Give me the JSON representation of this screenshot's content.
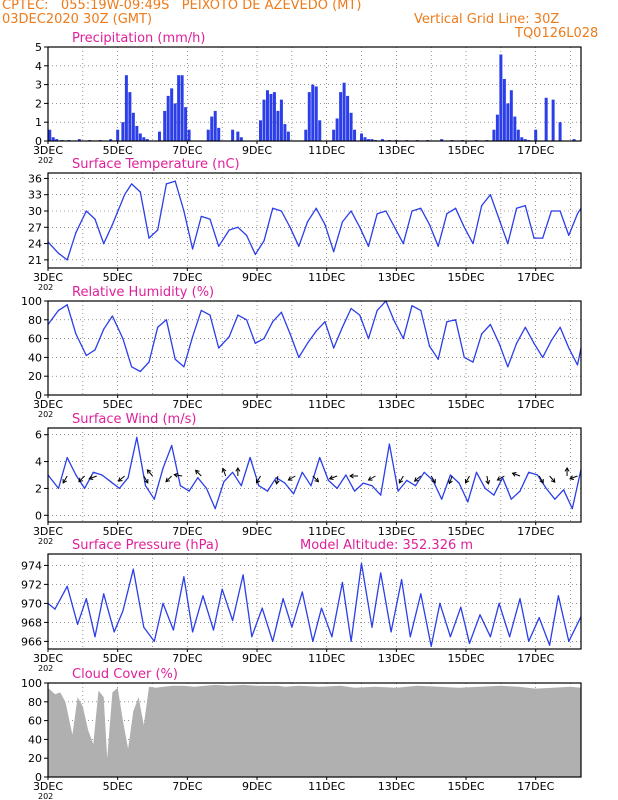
{
  "header": {
    "line1_left": "CPTEC:   055:19W-09:49S   PEIXOTO DE AZEVEDO (MT)",
    "line2_left": "03DEC2020 30Z (GMT)",
    "line2_right": "Vertical Grid Line: 30Z",
    "line3_right": "TQ0126L028"
  },
  "colors": {
    "header_text": "#ee7b1b",
    "panel_title": "#e0209a",
    "series_line": "#2b3ee8",
    "precip_bars": "#2b3ee8",
    "cloud_fill": "#b0b0b0",
    "wind_arrow": "#000000"
  },
  "axis": {
    "x_ticks": [
      "3DEC",
      "5DEC",
      "7DEC",
      "9DEC",
      "11DEC",
      "13DEC",
      "15DEC",
      "17DEC"
    ],
    "x_start_suffix": "202",
    "x_range_days": [
      0,
      15.3
    ]
  },
  "chart_data": [
    {
      "id": "precip",
      "type": "bar",
      "title": "Precipitation (mm/h)",
      "ylim": [
        0,
        5
      ],
      "yticks": [
        0,
        1,
        2,
        3,
        4,
        5
      ],
      "grid": true,
      "x": [
        0.05,
        0.15,
        0.25,
        0.4,
        0.6,
        0.9,
        1.2,
        1.5,
        1.8,
        2.0,
        2.15,
        2.25,
        2.35,
        2.45,
        2.55,
        2.65,
        2.75,
        2.85,
        3.2,
        3.35,
        3.45,
        3.55,
        3.65,
        3.75,
        3.85,
        3.95,
        4.05,
        4.6,
        4.7,
        4.8,
        4.9,
        5.3,
        5.45,
        5.55,
        6.1,
        6.2,
        6.3,
        6.4,
        6.5,
        6.6,
        6.7,
        6.8,
        6.9,
        7.4,
        7.5,
        7.6,
        7.7,
        7.8,
        8.2,
        8.3,
        8.4,
        8.5,
        8.6,
        8.7,
        8.8,
        9.0,
        9.1,
        9.2,
        9.3,
        9.4,
        9.6,
        9.8,
        10.0,
        10.3,
        10.6,
        10.9,
        11.3,
        11.6,
        11.9,
        12.3,
        12.6,
        12.8,
        12.9,
        13.0,
        13.1,
        13.2,
        13.3,
        13.4,
        13.5,
        13.6,
        13.7,
        13.8,
        14.0,
        14.3,
        14.5,
        14.7,
        15.1
      ],
      "values": [
        0.6,
        0.2,
        0.1,
        0.05,
        0.05,
        0.1,
        0.05,
        0.05,
        0.1,
        0.6,
        1.0,
        3.5,
        2.6,
        1.5,
        0.8,
        0.4,
        0.2,
        0.1,
        0.5,
        1.6,
        2.4,
        2.8,
        2.0,
        3.5,
        3.5,
        1.8,
        0.6,
        0.6,
        1.3,
        1.6,
        0.7,
        0.6,
        0.5,
        0.2,
        1.1,
        2.2,
        2.7,
        2.5,
        2.6,
        1.6,
        2.2,
        0.9,
        0.5,
        0.6,
        2.6,
        3.0,
        2.9,
        1.1,
        0.6,
        1.2,
        2.6,
        3.1,
        2.4,
        1.5,
        0.6,
        0.4,
        0.2,
        0.1,
        0.1,
        0.05,
        0.1,
        0.05,
        0.05,
        0.05,
        0.05,
        0.05,
        0.1,
        0.05,
        0.05,
        0.05,
        0.05,
        0.6,
        1.4,
        4.6,
        3.3,
        2.0,
        2.7,
        1.3,
        0.6,
        0.2,
        0.1,
        0.05,
        0.6,
        2.3,
        2.2,
        1.0,
        0.1
      ]
    },
    {
      "id": "temp",
      "type": "line",
      "title": "Surface Temperature (nC)",
      "ylim": [
        19.5,
        37
      ],
      "yticks": [
        21,
        24,
        27,
        30,
        33,
        36
      ],
      "grid": true,
      "x": [
        0,
        0.3,
        0.55,
        0.8,
        1.1,
        1.35,
        1.6,
        1.85,
        2.2,
        2.4,
        2.65,
        2.9,
        3.15,
        3.4,
        3.65,
        3.9,
        4.15,
        4.4,
        4.65,
        4.9,
        5.2,
        5.45,
        5.7,
        5.95,
        6.2,
        6.45,
        6.7,
        6.95,
        7.2,
        7.45,
        7.7,
        7.95,
        8.2,
        8.45,
        8.7,
        8.95,
        9.2,
        9.45,
        9.7,
        9.95,
        10.2,
        10.45,
        10.7,
        10.95,
        11.2,
        11.45,
        11.7,
        11.95,
        12.2,
        12.45,
        12.7,
        12.95,
        13.2,
        13.45,
        13.7,
        13.95,
        14.2,
        14.45,
        14.7,
        14.95,
        15.2,
        15.3
      ],
      "values": [
        24.3,
        22.2,
        21.0,
        26.0,
        30.0,
        28.5,
        24.0,
        27.5,
        33.0,
        35.0,
        33.5,
        25.0,
        26.5,
        35.0,
        35.5,
        30.0,
        23.0,
        29.0,
        28.5,
        23.5,
        26.5,
        27.0,
        25.5,
        22.0,
        24.5,
        30.5,
        30.0,
        27.0,
        23.5,
        28.0,
        30.5,
        27.5,
        22.5,
        28.0,
        30.0,
        27.0,
        23.5,
        29.5,
        30.0,
        27.0,
        24.0,
        30.0,
        30.5,
        27.5,
        23.5,
        29.5,
        30.5,
        27.0,
        24.0,
        31.0,
        33.0,
        28.5,
        24.0,
        30.5,
        31.0,
        25.0,
        25.0,
        30.0,
        30.0,
        25.5,
        29.5,
        30.5
      ]
    },
    {
      "id": "humid",
      "type": "line",
      "title": "Relative Humidity (%)",
      "ylim": [
        0,
        100
      ],
      "yticks": [
        0,
        20,
        40,
        60,
        80,
        100
      ],
      "grid": true,
      "x": [
        0,
        0.3,
        0.55,
        0.8,
        1.1,
        1.35,
        1.6,
        1.85,
        2.15,
        2.4,
        2.65,
        2.9,
        3.15,
        3.4,
        3.65,
        3.9,
        4.15,
        4.4,
        4.65,
        4.9,
        5.2,
        5.45,
        5.7,
        5.95,
        6.2,
        6.45,
        6.7,
        6.95,
        7.2,
        7.45,
        7.7,
        7.95,
        8.2,
        8.45,
        8.7,
        8.95,
        9.2,
        9.45,
        9.7,
        9.95,
        10.2,
        10.45,
        10.7,
        10.95,
        11.2,
        11.45,
        11.7,
        11.95,
        12.2,
        12.45,
        12.7,
        12.95,
        13.2,
        13.45,
        13.7,
        13.95,
        14.2,
        14.45,
        14.7,
        14.95,
        15.2,
        15.3
      ],
      "values": [
        75,
        90,
        96,
        65,
        42,
        48,
        70,
        84,
        60,
        30,
        25,
        35,
        72,
        80,
        38,
        30,
        62,
        90,
        85,
        50,
        62,
        85,
        80,
        55,
        60,
        78,
        88,
        65,
        40,
        55,
        68,
        78,
        50,
        72,
        92,
        85,
        60,
        90,
        100,
        78,
        60,
        95,
        90,
        52,
        38,
        78,
        80,
        40,
        35,
        65,
        75,
        55,
        30,
        55,
        72,
        55,
        40,
        58,
        72,
        50,
        32,
        50
      ]
    },
    {
      "id": "wind",
      "type": "line",
      "title": "Surface Wind (m/s)",
      "ylim": [
        -0.5,
        6.5
      ],
      "yticks": [
        0,
        2,
        4,
        6
      ],
      "grid": true,
      "x": [
        0,
        0.3,
        0.55,
        0.8,
        1.05,
        1.3,
        1.55,
        1.8,
        2.05,
        2.3,
        2.55,
        2.8,
        3.05,
        3.3,
        3.55,
        3.8,
        4.05,
        4.3,
        4.55,
        4.8,
        5.05,
        5.3,
        5.55,
        5.8,
        6.05,
        6.3,
        6.55,
        6.8,
        7.05,
        7.3,
        7.55,
        7.8,
        8.05,
        8.3,
        8.55,
        8.8,
        9.05,
        9.3,
        9.55,
        9.8,
        10.05,
        10.3,
        10.55,
        10.8,
        11.05,
        11.3,
        11.55,
        11.8,
        12.05,
        12.3,
        12.55,
        12.8,
        13.05,
        13.3,
        13.55,
        13.8,
        14.05,
        14.3,
        14.55,
        14.8,
        15.05,
        15.3
      ],
      "values": [
        3.0,
        2.0,
        4.3,
        3.0,
        2.0,
        3.2,
        3.0,
        2.5,
        2.0,
        2.8,
        5.8,
        2.2,
        1.2,
        3.5,
        5.2,
        2.2,
        1.8,
        2.8,
        2.0,
        0.5,
        2.5,
        3.2,
        2.2,
        4.3,
        2.2,
        1.8,
        2.8,
        2.4,
        1.6,
        3.2,
        2.2,
        4.3,
        2.6,
        2.0,
        3.0,
        1.8,
        2.4,
        2.2,
        1.5,
        5.3,
        1.8,
        2.6,
        2.2,
        3.2,
        2.6,
        1.2,
        3.0,
        2.4,
        1.0,
        3.2,
        2.0,
        1.5,
        2.8,
        1.2,
        1.8,
        3.2,
        3.0,
        2.0,
        1.2,
        1.9,
        0.5,
        3.4
      ]
    },
    {
      "id": "press",
      "type": "line",
      "title": "Surface Pressure (hPa)",
      "annotation": "Model Altitude: 352.326 m",
      "ylim": [
        965.2,
        975.2
      ],
      "yticks": [
        966,
        968,
        970,
        972,
        974
      ],
      "grid": true,
      "x": [
        0,
        0.2,
        0.55,
        0.85,
        1.1,
        1.35,
        1.6,
        1.9,
        2.15,
        2.45,
        2.75,
        3.05,
        3.3,
        3.6,
        3.9,
        4.15,
        4.45,
        4.75,
        5.0,
        5.3,
        5.6,
        5.85,
        6.15,
        6.45,
        6.75,
        7.0,
        7.3,
        7.6,
        7.85,
        8.15,
        8.45,
        8.7,
        9.0,
        9.3,
        9.55,
        9.85,
        10.15,
        10.4,
        10.7,
        11.0,
        11.25,
        11.55,
        11.85,
        12.1,
        12.4,
        12.7,
        12.95,
        13.25,
        13.55,
        13.8,
        14.1,
        14.4,
        14.65,
        14.95,
        15.3
      ],
      "values": [
        970.0,
        969.4,
        971.8,
        967.8,
        970.5,
        966.5,
        971.0,
        967.0,
        969.2,
        973.6,
        967.5,
        966.0,
        970.0,
        967.2,
        972.8,
        967.0,
        970.8,
        967.2,
        971.5,
        968.2,
        973.0,
        966.5,
        969.5,
        966.0,
        970.5,
        967.5,
        971.2,
        966.0,
        969.5,
        966.5,
        972.2,
        966.0,
        974.2,
        967.5,
        973.2,
        967.0,
        972.5,
        966.5,
        971.0,
        965.5,
        970.0,
        966.5,
        969.6,
        965.8,
        968.8,
        966.5,
        970.0,
        966.5,
        970.5,
        966.0,
        968.5,
        965.6,
        970.8,
        966.0,
        968.6
      ]
    },
    {
      "id": "cloud",
      "type": "area",
      "title": "Cloud Cover (%)",
      "ylim": [
        0,
        100
      ],
      "yticks": [
        0,
        20,
        40,
        60,
        80,
        100
      ],
      "grid": true,
      "x": [
        0,
        0.2,
        0.35,
        0.5,
        0.7,
        0.85,
        1.0,
        1.15,
        1.3,
        1.45,
        1.6,
        1.7,
        1.85,
        2.0,
        2.15,
        2.3,
        2.45,
        2.6,
        2.75,
        2.9,
        3.1,
        3.3,
        3.6,
        3.9,
        4.2,
        4.5,
        4.8,
        5.2,
        5.6,
        6.0,
        6.6,
        6.8,
        7.2,
        7.8,
        8.4,
        8.8,
        9.4,
        10.0,
        10.6,
        11.2,
        11.8,
        12.4,
        13.0,
        13.5,
        14.0,
        14.5,
        15.0,
        15.3
      ],
      "values": [
        95,
        88,
        90,
        80,
        45,
        85,
        75,
        50,
        35,
        92,
        85,
        20,
        90,
        95,
        60,
        30,
        70,
        85,
        55,
        96,
        95,
        96,
        97,
        97,
        96,
        97,
        98,
        97,
        98,
        97,
        97,
        96,
        97,
        96,
        97,
        95,
        96,
        95,
        97,
        96,
        95,
        96,
        97,
        96,
        94,
        95,
        96,
        95
      ]
    }
  ],
  "wind_arrows": [
    {
      "day": 0.55,
      "angle": 120
    },
    {
      "day": 1.05,
      "angle": 135
    },
    {
      "day": 1.4,
      "angle": 160
    },
    {
      "day": 2.2,
      "angle": 140
    },
    {
      "day": 2.75,
      "angle": 60
    },
    {
      "day": 3.0,
      "angle": 230
    },
    {
      "day": 3.55,
      "angle": 135
    },
    {
      "day": 3.85,
      "angle": 190
    },
    {
      "day": 4.4,
      "angle": 225
    },
    {
      "day": 5.1,
      "angle": 250
    },
    {
      "day": 5.45,
      "angle": 270
    },
    {
      "day": 6.1,
      "angle": 120
    },
    {
      "day": 6.6,
      "angle": 100
    },
    {
      "day": 7.1,
      "angle": 150
    },
    {
      "day": 7.6,
      "angle": 45
    },
    {
      "day": 8.3,
      "angle": 160
    },
    {
      "day": 8.9,
      "angle": 180
    },
    {
      "day": 9.4,
      "angle": 150
    },
    {
      "day": 10.2,
      "angle": 120
    },
    {
      "day": 10.7,
      "angle": 140
    },
    {
      "day": 11.0,
      "angle": 60
    },
    {
      "day": 11.6,
      "angle": 110
    },
    {
      "day": 12.1,
      "angle": 120
    },
    {
      "day": 12.6,
      "angle": 80
    },
    {
      "day": 13.1,
      "angle": 150
    },
    {
      "day": 13.55,
      "angle": 200
    },
    {
      "day": 14.1,
      "angle": 60
    },
    {
      "day": 14.4,
      "angle": 50
    },
    {
      "day": 14.9,
      "angle": 270
    },
    {
      "day": 15.2,
      "angle": 160
    }
  ]
}
